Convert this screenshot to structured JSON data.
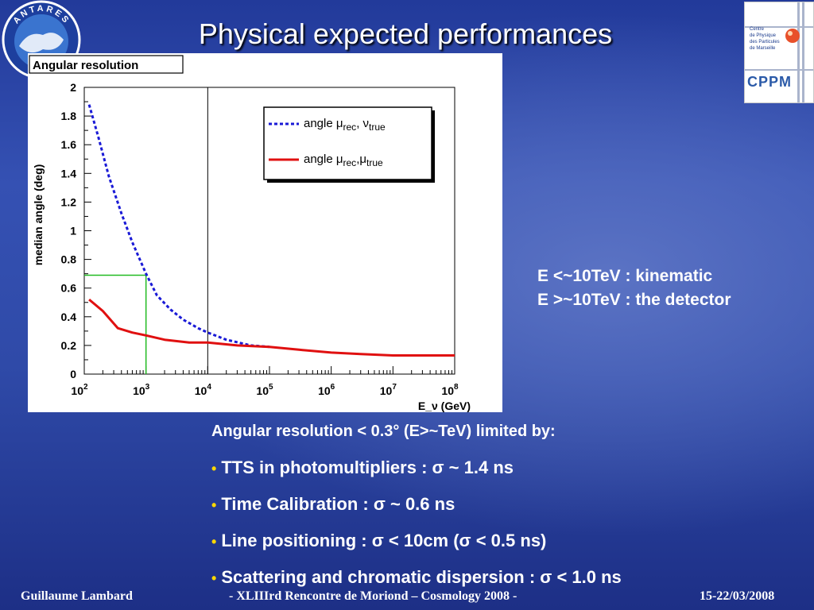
{
  "slide": {
    "title": "Physical expected performances",
    "antares_logo_text": "ANTARES",
    "cppm_logo_lines": [
      "Centre",
      "de Physique",
      "des Particules",
      "de Marseille"
    ],
    "cppm_logo_word": "CPPM"
  },
  "annotation": {
    "line1": "E <~10TeV : kinematic",
    "line2": "E >~10TeV : the detector"
  },
  "bullets": {
    "intro": "Angular resolution < 0.3° (E>~TeV) limited by:",
    "items": [
      "TTS in photomultipliers : σ ~ 1.4 ns",
      "Time Calibration : σ ~ 0.6 ns",
      "Line positioning : σ < 10cm (σ < 0.5 ns)",
      "Scattering and chromatic dispersion : σ < 1.0 ns"
    ]
  },
  "footer": {
    "author": "Guillaume Lambard",
    "event": "-   XLIIIrd    Rencontre de Moriond – Cosmology 2008    -",
    "date": "15-22/03/2008"
  },
  "colors": {
    "neutrino_curve": "#1a1ad6",
    "muon_curve": "#e01010",
    "marker_line": "#22bb22",
    "bullet_dot": "#ffd800"
  },
  "chart_data": {
    "type": "line",
    "title": "Angular resolution",
    "xlabel": "E_ν (GeV)",
    "ylabel": "median angle (deg)",
    "xscale": "log",
    "xlim": [
      100,
      100000000
    ],
    "ylim": [
      0,
      2
    ],
    "x_ticks": [
      100,
      1000,
      10000,
      100000,
      1000000,
      10000000,
      100000000
    ],
    "x_tick_labels": [
      [
        "10",
        "2"
      ],
      [
        "10",
        "3"
      ],
      [
        "10",
        "4"
      ],
      [
        "10",
        "5"
      ],
      [
        "10",
        "6"
      ],
      [
        "10",
        "7"
      ],
      [
        "10",
        "8"
      ]
    ],
    "y_ticks": [
      0,
      0.2,
      0.4,
      0.6,
      0.8,
      1,
      1.2,
      1.4,
      1.6,
      1.8,
      2
    ],
    "y_tick_labels": [
      "0",
      "0.2",
      "0.4",
      "0.6",
      "0.8",
      "1",
      "1.2",
      "1.4",
      "1.6",
      "1.8",
      "2"
    ],
    "legend_position": "top-right",
    "legend": [
      {
        "text": "angle  μ",
        "sub1": "rec",
        "sep": ", ν",
        "sub2": "true",
        "style": "dashed"
      },
      {
        "text": "angle  μ",
        "sub1": "rec",
        "sep": ",μ",
        "sub2": "true",
        "style": "solid"
      }
    ],
    "series": [
      {
        "label": "angle μrec, νtrue",
        "style": "dashed",
        "x": [
          120,
          170,
          250,
          400,
          600,
          1000,
          1500,
          2500,
          4000,
          7000,
          10000,
          20000,
          50000,
          100000
        ],
        "y": [
          1.88,
          1.65,
          1.38,
          1.12,
          0.92,
          0.7,
          0.55,
          0.45,
          0.38,
          0.32,
          0.29,
          0.24,
          0.2,
          0.19
        ]
      },
      {
        "label": "angle μrec, μtrue",
        "style": "solid",
        "x": [
          120,
          200,
          350,
          600,
          1000,
          2000,
          5000,
          10000,
          30000,
          100000,
          300000,
          1000000,
          3000000,
          10000000,
          30000000,
          100000000
        ],
        "y": [
          0.52,
          0.44,
          0.32,
          0.29,
          0.27,
          0.24,
          0.22,
          0.22,
          0.2,
          0.19,
          0.17,
          0.15,
          0.14,
          0.13,
          0.13,
          0.13
        ]
      }
    ],
    "reference_lines": [
      {
        "kind": "vertical",
        "x": 10000,
        "color": "black"
      },
      {
        "kind": "marker",
        "x": 1000,
        "y": 0.69,
        "color": "green"
      }
    ]
  }
}
